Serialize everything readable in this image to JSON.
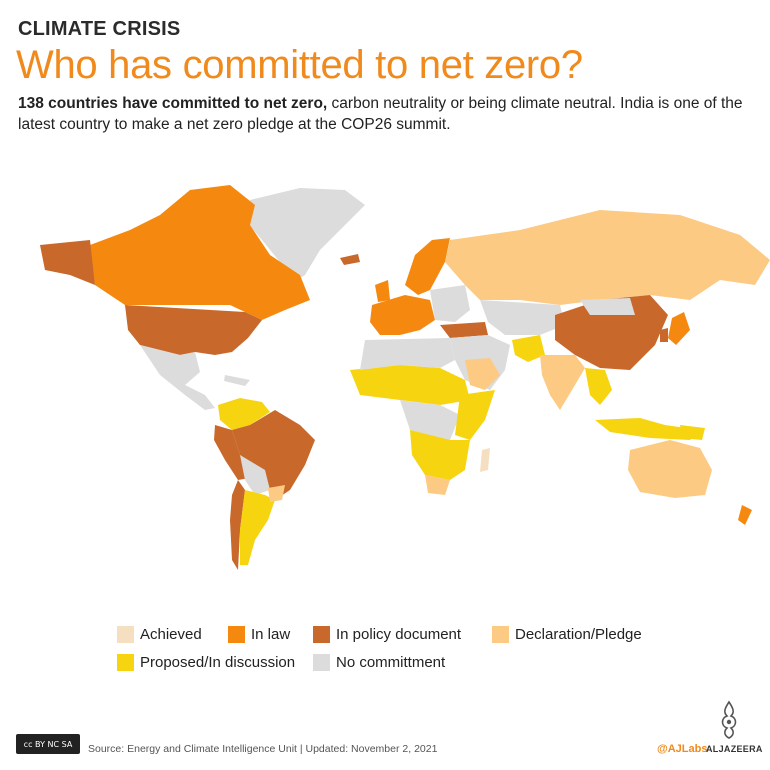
{
  "header": {
    "kicker": "CLIMATE CRISIS",
    "title": "Who has committed to net zero?",
    "intro_bold": "138 countries have committed to net zero,",
    "intro_rest": " carbon neutrality or being climate neutral. India is one of the latest country to make a net zero pledge at the COP26 summit."
  },
  "colors": {
    "achieved": "#f6dfc0",
    "in_law": "#f5890f",
    "in_policy": "#c8682b",
    "declaration": "#fcca83",
    "proposed": "#f6d510",
    "none": "#dcdcdc"
  },
  "legend": [
    {
      "key": "achieved",
      "label": "Achieved"
    },
    {
      "key": "in_law",
      "label": "In law"
    },
    {
      "key": "in_policy",
      "label": "In policy document"
    },
    {
      "key": "declaration",
      "label": "Declaration/Pledge"
    },
    {
      "key": "proposed",
      "label": "Proposed/In discussion"
    },
    {
      "key": "none",
      "label": "No committment"
    }
  ],
  "footer": {
    "license": "cc BY NC SA",
    "source": "Source: Energy and Climate Intelligence Unit  |  Updated: November 2, 2021",
    "handle": "@AJLabs",
    "brand": "ALJAZEERA"
  }
}
